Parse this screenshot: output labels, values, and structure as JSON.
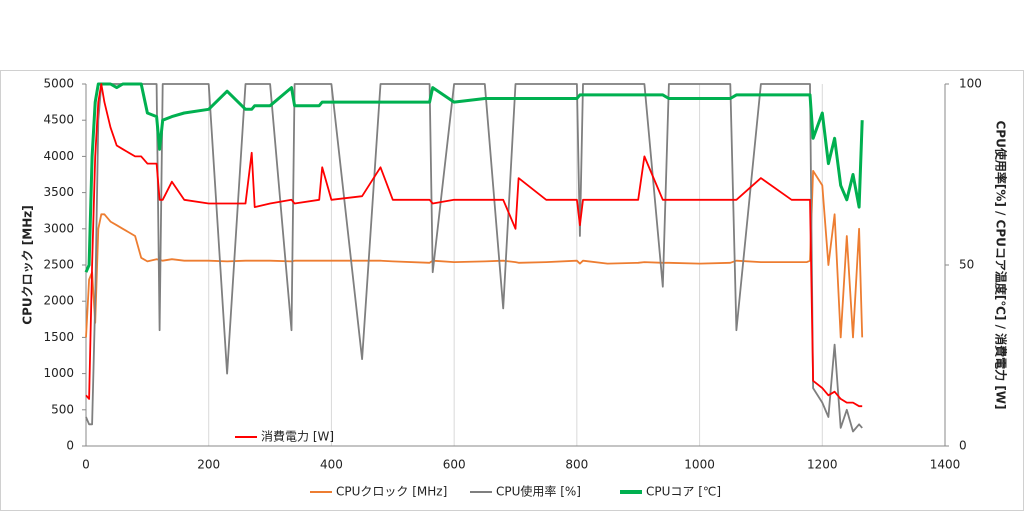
{
  "chart_data": {
    "type": "line",
    "y_label": "CPUクロック [MHz]",
    "y2_label": "CPU使用率[%] / CPUコア温度[℃] / 消費電力 [W]",
    "x": [
      0,
      5,
      10,
      15,
      20,
      25,
      30,
      40,
      50,
      60,
      80,
      90,
      100,
      115,
      120,
      125,
      140,
      160,
      200,
      230,
      260,
      270,
      275,
      300,
      335,
      340,
      380,
      385,
      400,
      450,
      480,
      500,
      560,
      565,
      600,
      650,
      680,
      700,
      705,
      750,
      800,
      805,
      810,
      850,
      900,
      910,
      940,
      950,
      1000,
      1050,
      1060,
      1100,
      1150,
      1175,
      1180,
      1185,
      1200,
      1210,
      1220,
      1230,
      1240,
      1250,
      1260,
      1265
    ],
    "xlim": [
      0,
      1400
    ],
    "xticks": [
      0,
      200,
      400,
      600,
      800,
      1000,
      1200,
      1400
    ],
    "ylim": [
      0,
      5000
    ],
    "yticks": [
      0,
      500,
      1000,
      1500,
      2000,
      2500,
      3000,
      3500,
      4000,
      4500,
      5000
    ],
    "y2lim": [
      0,
      100
    ],
    "y2ticks": [
      0,
      50,
      100
    ],
    "grid": true,
    "legend": "bottom",
    "series": [
      {
        "name": "CPUクロック [MHz]",
        "color": "#ed7d31",
        "values": [
          1500,
          2300,
          2400,
          1700,
          3000,
          3200,
          3200,
          3100,
          3050,
          3000,
          2900,
          2600,
          2550,
          2580,
          2570,
          2560,
          2580,
          2560,
          2560,
          2550,
          2560,
          2560,
          2560,
          2560,
          2550,
          2560,
          2560,
          2560,
          2560,
          2560,
          2560,
          2550,
          2530,
          2560,
          2540,
          2550,
          2560,
          2540,
          2530,
          2540,
          2560,
          2520,
          2560,
          2520,
          2530,
          2540,
          2530,
          2530,
          2520,
          2530,
          2560,
          2540,
          2540,
          2540,
          2560,
          3800,
          3600,
          2500,
          3200,
          1500,
          2900,
          1500,
          3000,
          1500
        ]
      },
      {
        "name": "CPU使用率 [%]",
        "color": "#7f7f7f",
        "axis": "y2",
        "values": [
          8,
          6,
          6,
          40,
          90,
          100,
          100,
          100,
          100,
          100,
          100,
          100,
          100,
          100,
          32,
          100,
          100,
          100,
          100,
          20,
          100,
          100,
          100,
          100,
          32,
          100,
          100,
          100,
          100,
          24,
          100,
          100,
          100,
          48,
          100,
          100,
          38,
          100,
          100,
          100,
          100,
          58,
          100,
          100,
          100,
          100,
          44,
          100,
          100,
          100,
          32,
          100,
          100,
          100,
          100,
          16,
          12,
          8,
          28,
          5,
          10,
          4,
          6,
          5
        ]
      },
      {
        "name": "CPUコア [℃]",
        "color": "#00b050",
        "axis": "y2",
        "values": [
          48,
          50,
          80,
          95,
          100,
          100,
          100,
          100,
          99,
          100,
          100,
          100,
          92,
          91,
          82,
          90,
          91,
          92,
          93,
          98,
          93,
          93,
          94,
          94,
          99,
          94,
          94,
          95,
          95,
          95,
          95,
          95,
          95,
          99,
          95,
          96,
          96,
          96,
          96,
          96,
          96,
          97,
          97,
          97,
          97,
          97,
          97,
          96,
          96,
          96,
          97,
          97,
          97,
          97,
          97,
          85,
          92,
          78,
          85,
          72,
          68,
          75,
          66,
          90
        ]
      },
      {
        "name": "消費電力 [W]",
        "color": "#ff0000",
        "axis": "y2",
        "values": [
          14,
          13,
          50,
          80,
          95,
          100,
          95,
          88,
          83,
          82,
          80,
          80,
          78,
          78,
          68,
          68,
          73,
          68,
          67,
          67,
          67,
          81,
          66,
          67,
          68,
          67,
          68,
          77,
          68,
          69,
          77,
          68,
          68,
          67,
          68,
          68,
          68,
          60,
          74,
          68,
          68,
          61,
          68,
          68,
          68,
          80,
          68,
          68,
          68,
          68,
          68,
          74,
          68,
          68,
          68,
          18,
          16,
          14,
          15,
          13,
          12,
          12,
          11,
          11
        ]
      }
    ]
  }
}
